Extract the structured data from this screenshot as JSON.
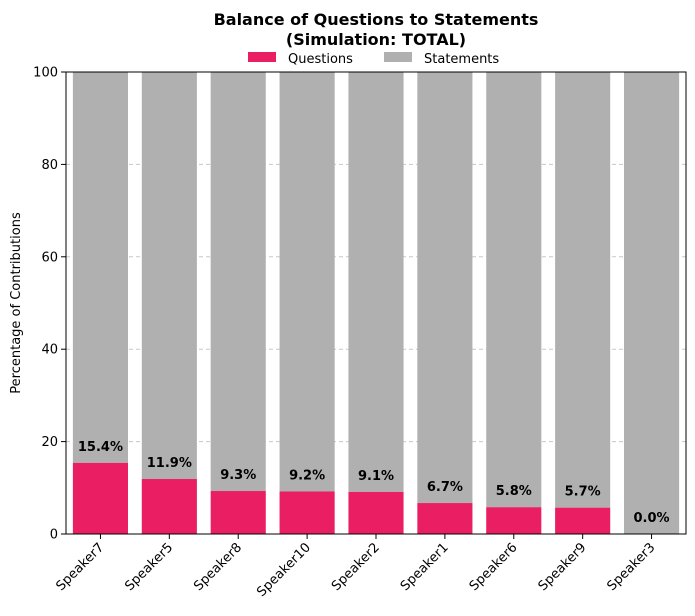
{
  "chart_data": {
    "type": "bar",
    "stacked": true,
    "title_line1": "Balance of Questions to Statements",
    "title_line2": "(Simulation: TOTAL)",
    "xlabel": "",
    "ylabel": "Percentage of Contributions",
    "ylim": [
      0,
      100
    ],
    "yticks": [
      "0",
      "20",
      "40",
      "60",
      "80",
      "100"
    ],
    "grid": "y-dashed",
    "legend_position": "top-center",
    "categories": [
      "Speaker7",
      "Speaker5",
      "Speaker8",
      "Speaker10",
      "Speaker2",
      "Speaker1",
      "Speaker6",
      "Speaker9",
      "Speaker3"
    ],
    "series": [
      {
        "name": "Questions",
        "color": "#e91e63",
        "values": [
          15.4,
          11.9,
          9.3,
          9.2,
          9.1,
          6.7,
          5.8,
          5.7,
          0.0
        ]
      },
      {
        "name": "Statements",
        "color": "#b0b0b0",
        "values": [
          84.6,
          88.1,
          90.7,
          90.8,
          90.9,
          93.3,
          94.2,
          94.3,
          100.0
        ]
      }
    ],
    "data_labels": [
      "15.4%",
      "11.9%",
      "9.3%",
      "9.2%",
      "9.1%",
      "6.7%",
      "5.8%",
      "5.7%",
      "0.0%"
    ]
  }
}
